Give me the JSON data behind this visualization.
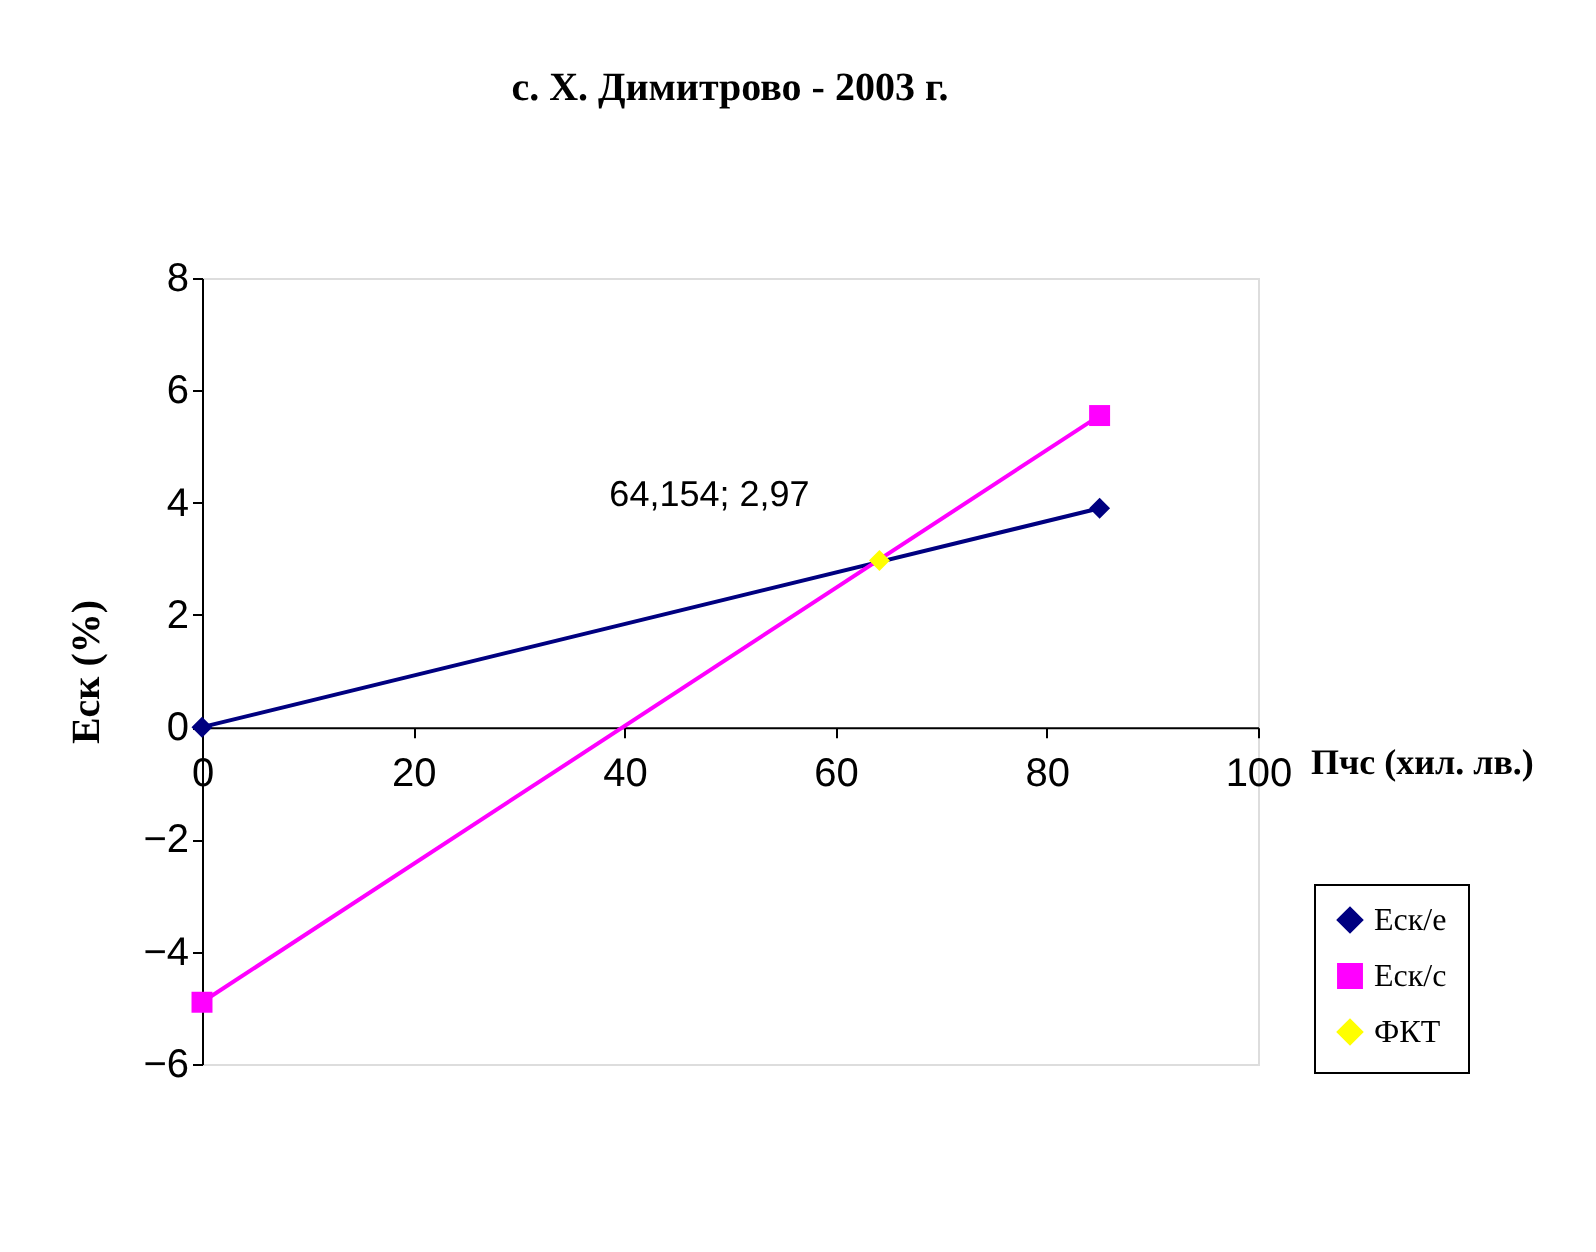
{
  "chart_data": {
    "type": "line",
    "title": "с. Х. Димитрово - 2003 г.",
    "xlabel": "Пчс (хил. лв.)",
    "ylabel": "Еск (%)",
    "series": [
      {
        "name": "Еск/е",
        "color": "#000080",
        "marker": "diamond",
        "x": [
          0,
          85
        ],
        "values": [
          0,
          3.9
        ]
      },
      {
        "name": "Еск/с",
        "color": "#ff00ff",
        "marker": "square",
        "x": [
          0,
          85
        ],
        "values": [
          -4.9,
          5.55
        ]
      },
      {
        "name": "ФКТ",
        "color": "#ffff00",
        "marker": "diamond",
        "x": [
          64.154
        ],
        "values": [
          2.97
        ]
      }
    ],
    "annotations": [
      {
        "text": "64,154; 2,97",
        "x": 64.154,
        "y": 2.97
      }
    ],
    "xlim": [
      0,
      100
    ],
    "xticks": [
      0,
      20,
      40,
      60,
      80,
      100
    ],
    "ylim": [
      -6,
      8
    ],
    "yticks": [
      -6,
      -4,
      -2,
      0,
      2,
      4,
      6,
      8
    ],
    "grid": false,
    "legend": "bottom right",
    "line_style": "solid"
  }
}
